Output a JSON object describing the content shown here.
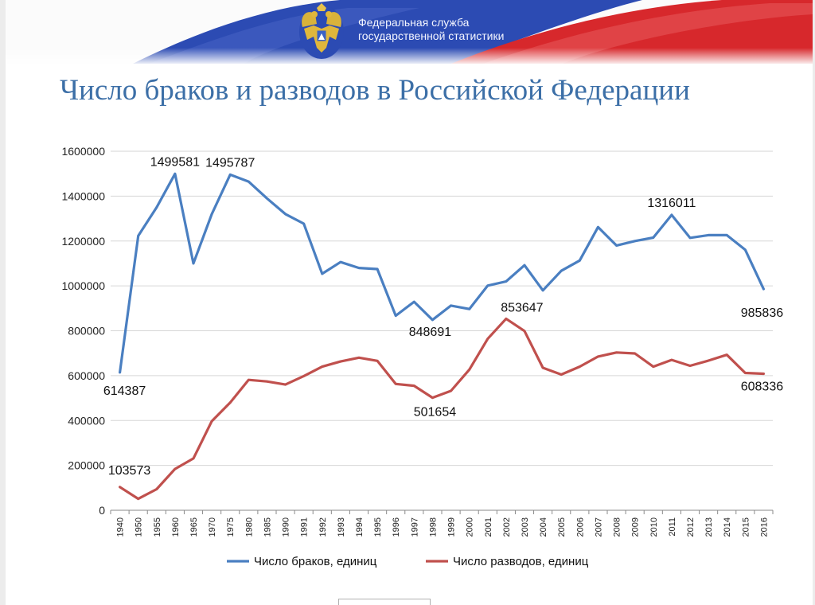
{
  "header": {
    "agency_line1": "Федеральная служба",
    "agency_line2": "государственной статистики",
    "emblem_icon": "double-headed-eagle-emblem-icon",
    "flag_colors": [
      "#ffffff",
      "#2b49b5",
      "#d62a2a"
    ]
  },
  "slide": {
    "title": "Число браков и разводов в Российской Федерации"
  },
  "chart_data": {
    "type": "line",
    "categories": [
      "1940",
      "1950",
      "1955",
      "1960",
      "1965",
      "1970",
      "1975",
      "1980",
      "1985",
      "1990",
      "1991",
      "1992",
      "1993",
      "1994",
      "1995",
      "1996",
      "1997",
      "1998",
      "1999",
      "2000",
      "2001",
      "2002",
      "2003",
      "2004",
      "2005",
      "2006",
      "2007",
      "2008",
      "2009",
      "2010",
      "2011",
      "2012",
      "2013",
      "2014",
      "2015",
      "2016"
    ],
    "yticks": [
      "0",
      "200000",
      "400000",
      "600000",
      "800000",
      "1000000",
      "1200000",
      "1400000",
      "1600000"
    ],
    "ylim": [
      0,
      1600000
    ],
    "grid": true,
    "legend_position": "bottom",
    "series": [
      {
        "name": "Число браков, единиц",
        "color": "#4a7fc1",
        "values": [
          614387,
          1223000,
          1350000,
          1499581,
          1100000,
          1320000,
          1495787,
          1465000,
          1390000,
          1320000,
          1277000,
          1054000,
          1106000,
          1080000,
          1075000,
          867000,
          929000,
          848691,
          912000,
          897000,
          1001000,
          1020000,
          1092000,
          980000,
          1067000,
          1113000,
          1262000,
          1180000,
          1200000,
          1215000,
          1316011,
          1214000,
          1226000,
          1226000,
          1161000,
          985836
        ]
      },
      {
        "name": "Число разводов, единиц",
        "color": "#c0504d",
        "values": [
          103573,
          51000,
          94000,
          184000,
          231000,
          397000,
          480000,
          581000,
          574000,
          560000,
          598000,
          640000,
          663000,
          680000,
          666000,
          563000,
          555000,
          501654,
          532000,
          627000,
          764000,
          853647,
          799000,
          635000,
          605000,
          640000,
          685000,
          703000,
          699000,
          640000,
          670000,
          644000,
          667000,
          693000,
          612000,
          608336
        ]
      }
    ],
    "data_labels": [
      {
        "series": 0,
        "index": 0,
        "text": "614387"
      },
      {
        "series": 0,
        "index": 3,
        "text": "1499581"
      },
      {
        "series": 0,
        "index": 6,
        "text": "1495787"
      },
      {
        "series": 0,
        "index": 17,
        "text": "848691"
      },
      {
        "series": 0,
        "index": 30,
        "text": "1316011"
      },
      {
        "series": 0,
        "index": 35,
        "text": "985836"
      },
      {
        "series": 1,
        "index": 0,
        "text": "103573"
      },
      {
        "series": 1,
        "index": 17,
        "text": "501654"
      },
      {
        "series": 1,
        "index": 21,
        "text": "853647"
      },
      {
        "series": 1,
        "index": 35,
        "text": "608336"
      }
    ]
  }
}
